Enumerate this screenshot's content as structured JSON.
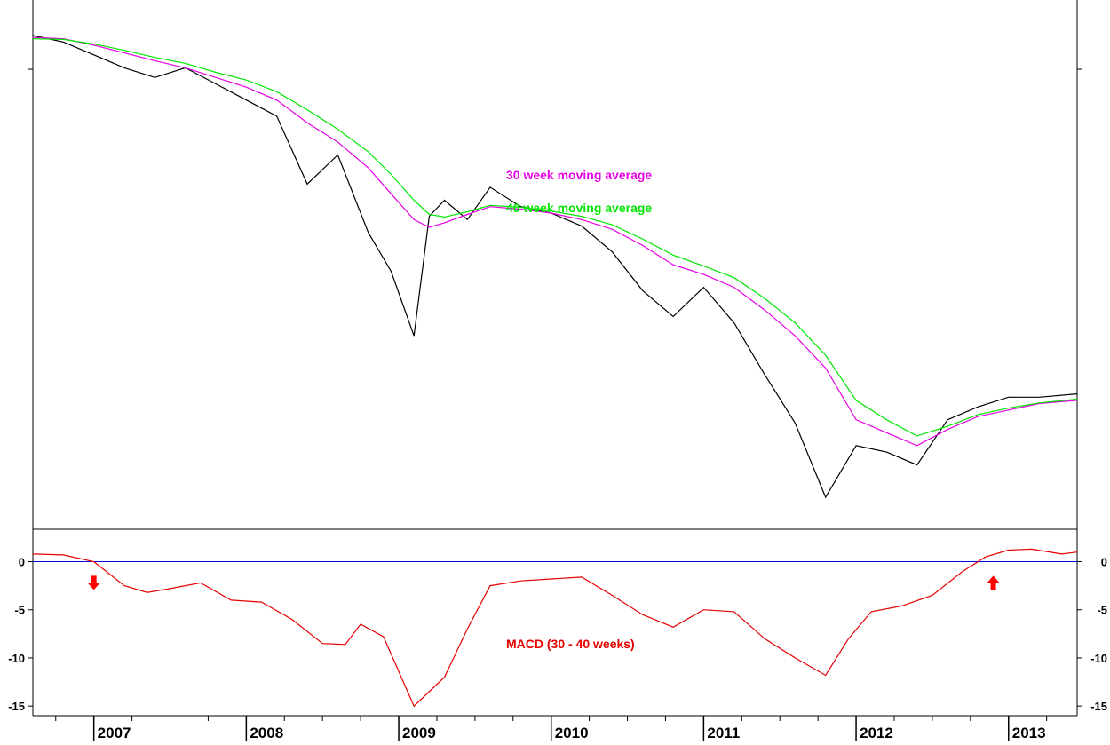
{
  "colors": {
    "price": "#000000",
    "ma30": "#e600e6",
    "ma40": "#00e600",
    "macd": "#e60000",
    "zero_line": "#0000e6",
    "arrow": "#ff0000"
  },
  "chart_data": [
    {
      "type": "line",
      "panel": "price",
      "title": "",
      "ylabel": "",
      "y_axis_labels": "none",
      "grid": false,
      "legend": "annotations near center",
      "annotations": [
        "30 week moving average",
        "40 week moving average"
      ],
      "x": [
        2006.6,
        2006.8,
        2007.0,
        2007.2,
        2007.4,
        2007.6,
        2007.8,
        2008.0,
        2008.2,
        2008.4,
        2008.6,
        2008.8,
        2008.95,
        2009.1,
        2009.2,
        2009.3,
        2009.45,
        2009.6,
        2009.8,
        2010.0,
        2010.2,
        2010.4,
        2010.6,
        2010.8,
        2011.0,
        2011.2,
        2011.4,
        2011.6,
        2011.8,
        2012.0,
        2012.2,
        2012.4,
        2012.6,
        2012.8,
        2013.0,
        2013.2,
        2013.45
      ],
      "series": [
        {
          "name": "price",
          "color_key": "price",
          "values": [
            94.5,
            93.5,
            91.5,
            89.5,
            88.0,
            89.5,
            87.0,
            84.5,
            82.0,
            71.5,
            76.0,
            64.0,
            58.0,
            48.0,
            66.5,
            69.0,
            66.0,
            71.0,
            68.0,
            67.0,
            65.0,
            61.0,
            55.0,
            51.0,
            55.5,
            50.0,
            42.0,
            34.5,
            23.0,
            31.0,
            30.0,
            28.0,
            35.0,
            37.0,
            38.5,
            38.5,
            39.0
          ]
        },
        {
          "name": "30 week moving average",
          "color_key": "ma30",
          "values": [
            94.2,
            94.0,
            93.0,
            91.8,
            90.6,
            89.5,
            88.0,
            86.5,
            84.5,
            81.0,
            78.0,
            74.0,
            70.0,
            66.0,
            64.8,
            65.5,
            66.8,
            68.0,
            67.6,
            67.0,
            66.0,
            64.5,
            62.0,
            59.0,
            57.5,
            55.5,
            52.0,
            48.0,
            43.0,
            35.0,
            33.0,
            31.0,
            33.5,
            35.5,
            36.5,
            37.5,
            38.0
          ]
        },
        {
          "name": "40 week moving average",
          "color_key": "ma40",
          "values": [
            94.0,
            93.9,
            93.2,
            92.2,
            91.1,
            90.2,
            88.8,
            87.6,
            85.8,
            83.0,
            80.0,
            76.5,
            73.0,
            69.0,
            66.8,
            66.4,
            67.2,
            68.2,
            67.9,
            67.3,
            66.5,
            65.2,
            63.0,
            60.5,
            58.8,
            57.0,
            53.8,
            50.0,
            45.0,
            38.0,
            35.0,
            32.5,
            34.0,
            35.8,
            36.8,
            37.6,
            38.2
          ]
        }
      ]
    },
    {
      "type": "line",
      "panel": "indicator",
      "title": "",
      "ylabel": "",
      "annotations": [
        "MACD (30 - 40 weeks)"
      ],
      "ylim": [
        -16,
        3
      ],
      "y_ticks": [
        0,
        -5,
        -10,
        -15
      ],
      "y_tick_labels": [
        "0",
        "-5",
        "-10",
        "-15"
      ],
      "zero_line": 0,
      "x": [
        2006.6,
        2006.8,
        2007.0,
        2007.2,
        2007.35,
        2007.5,
        2007.7,
        2007.9,
        2008.1,
        2008.3,
        2008.5,
        2008.65,
        2008.75,
        2008.9,
        2009.1,
        2009.3,
        2009.45,
        2009.6,
        2009.8,
        2010.0,
        2010.2,
        2010.4,
        2010.6,
        2010.8,
        2011.0,
        2011.2,
        2011.4,
        2011.6,
        2011.8,
        2011.95,
        2012.1,
        2012.3,
        2012.5,
        2012.7,
        2012.85,
        2013.0,
        2013.15,
        2013.35,
        2013.45
      ],
      "series": [
        {
          "name": "MACD (30 - 40 weeks)",
          "color_key": "macd",
          "values": [
            0.8,
            0.7,
            0.0,
            -2.5,
            -3.2,
            -2.8,
            -2.2,
            -4.0,
            -4.2,
            -6.0,
            -8.5,
            -8.6,
            -6.5,
            -7.8,
            -15.0,
            -12.0,
            -7.0,
            -2.5,
            -2.0,
            -1.8,
            -1.6,
            -3.5,
            -5.5,
            -6.8,
            -5.0,
            -5.2,
            -8.0,
            -10.0,
            -11.8,
            -8.0,
            -5.2,
            -4.6,
            -3.5,
            -1.0,
            0.5,
            1.2,
            1.3,
            0.8,
            1.0
          ]
        }
      ],
      "signals": [
        {
          "type": "sell",
          "x": 2007.0,
          "direction": "down"
        },
        {
          "type": "buy",
          "x": 2012.9,
          "direction": "up"
        }
      ]
    }
  ],
  "x_axis": {
    "tick_labels": [
      "2007",
      "2008",
      "2009",
      "2010",
      "2011",
      "2012",
      "2013"
    ],
    "range": [
      2006.6,
      2013.45
    ]
  }
}
